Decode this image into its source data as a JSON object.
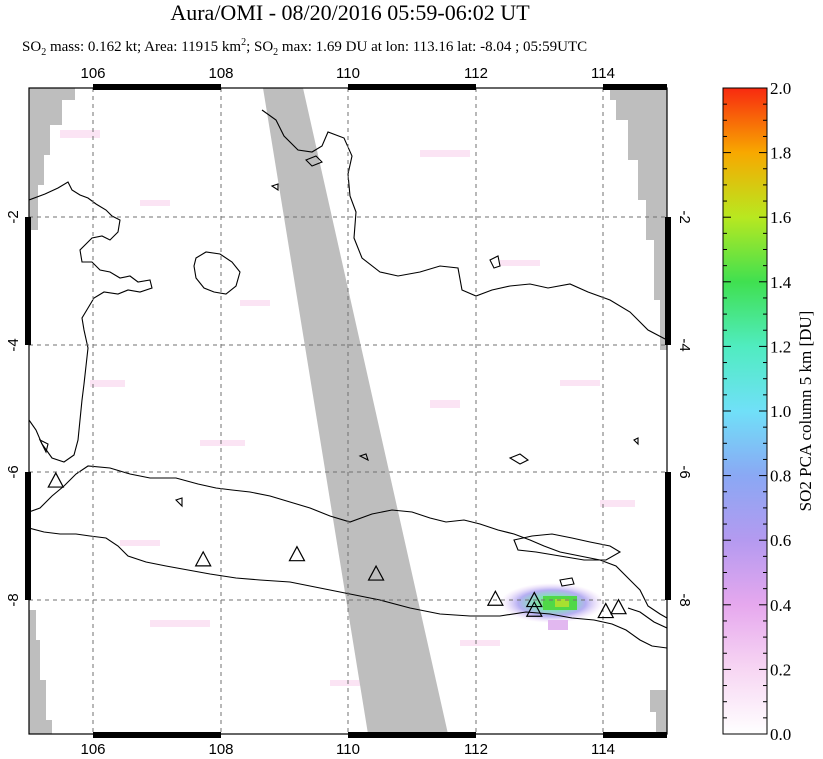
{
  "header": {
    "title": "Aura/OMI - 08/20/2016 05:59-06:02 UT",
    "subtitle_mass": "0.162 kt",
    "subtitle_area": "11915 km",
    "subtitle_max": "1.69 DU at lon: 113.16 lat: -8.04 ; 05:59UTC"
  },
  "map": {
    "lon_range": [
      105.0,
      115.0
    ],
    "lat_range": [
      -10.0,
      0.0
    ],
    "lon_ticks": [
      "106",
      "108",
      "110",
      "112",
      "114"
    ],
    "lat_ticks": [
      "-2",
      "-4",
      "-6",
      "-8"
    ],
    "lat_ticks_right": [
      "-2",
      "-4",
      "-6",
      "-8"
    ],
    "volcanoes": [
      {
        "lon": 105.42,
        "lat": -6.1
      },
      {
        "lon": 107.73,
        "lat": -7.32
      },
      {
        "lon": 109.2,
        "lat": -7.24
      },
      {
        "lon": 110.44,
        "lat": -7.54
      },
      {
        "lon": 112.31,
        "lat": -7.93
      },
      {
        "lon": 112.92,
        "lat": -7.95
      },
      {
        "lon": 112.92,
        "lat": -8.1
      },
      {
        "lon": 114.04,
        "lat": -8.12
      },
      {
        "lon": 114.24,
        "lat": -8.06
      }
    ],
    "so2_hotspot": {
      "lon": 113.16,
      "lat": -8.04,
      "value": 1.69
    }
  },
  "colorbar": {
    "label": "SO2 PCA column 5 km [DU]",
    "ticks": [
      "0.0",
      "0.2",
      "0.4",
      "0.6",
      "0.8",
      "1.0",
      "1.2",
      "1.4",
      "1.6",
      "1.8",
      "2.0"
    ],
    "range": [
      0.0,
      2.0
    ],
    "colors": [
      "#ffffff",
      "#f5c8f0",
      "#d08ee8",
      "#9a9af0",
      "#7ad8f8",
      "#7af0f0",
      "#40e8a0",
      "#40e040",
      "#d0e820",
      "#f8a000",
      "#f83010"
    ]
  }
}
